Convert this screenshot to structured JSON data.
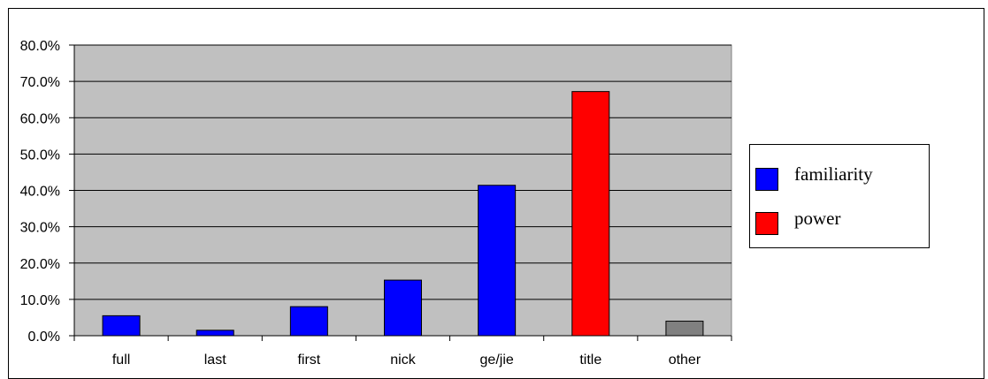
{
  "chart_data": {
    "type": "bar",
    "categories": [
      "full",
      "last",
      "first",
      "nick",
      "ge/jie",
      "title",
      "other"
    ],
    "values": [
      5.5,
      1.5,
      8.0,
      15.3,
      41.4,
      67.2,
      4.0
    ],
    "bar_series": [
      "familiarity",
      "familiarity",
      "familiarity",
      "familiarity",
      "familiarity",
      "power",
      "other"
    ],
    "ylim": [
      0,
      80
    ],
    "yticks": [
      0,
      10,
      20,
      30,
      40,
      50,
      60,
      70,
      80
    ],
    "ytick_labels": [
      "0.0%",
      "10.0%",
      "20.0%",
      "30.0%",
      "40.0%",
      "50.0%",
      "60.0%",
      "70.0%",
      "80.0%"
    ],
    "grid": true,
    "legend_position": "right",
    "legend": [
      {
        "name": "familiarity",
        "color": "#0000ff"
      },
      {
        "name": "power",
        "color": "#ff0000"
      }
    ],
    "colors": {
      "familiarity": "#0000ff",
      "power": "#ff0000",
      "other": "#808080",
      "plot_background": "#c0c0c0"
    }
  }
}
